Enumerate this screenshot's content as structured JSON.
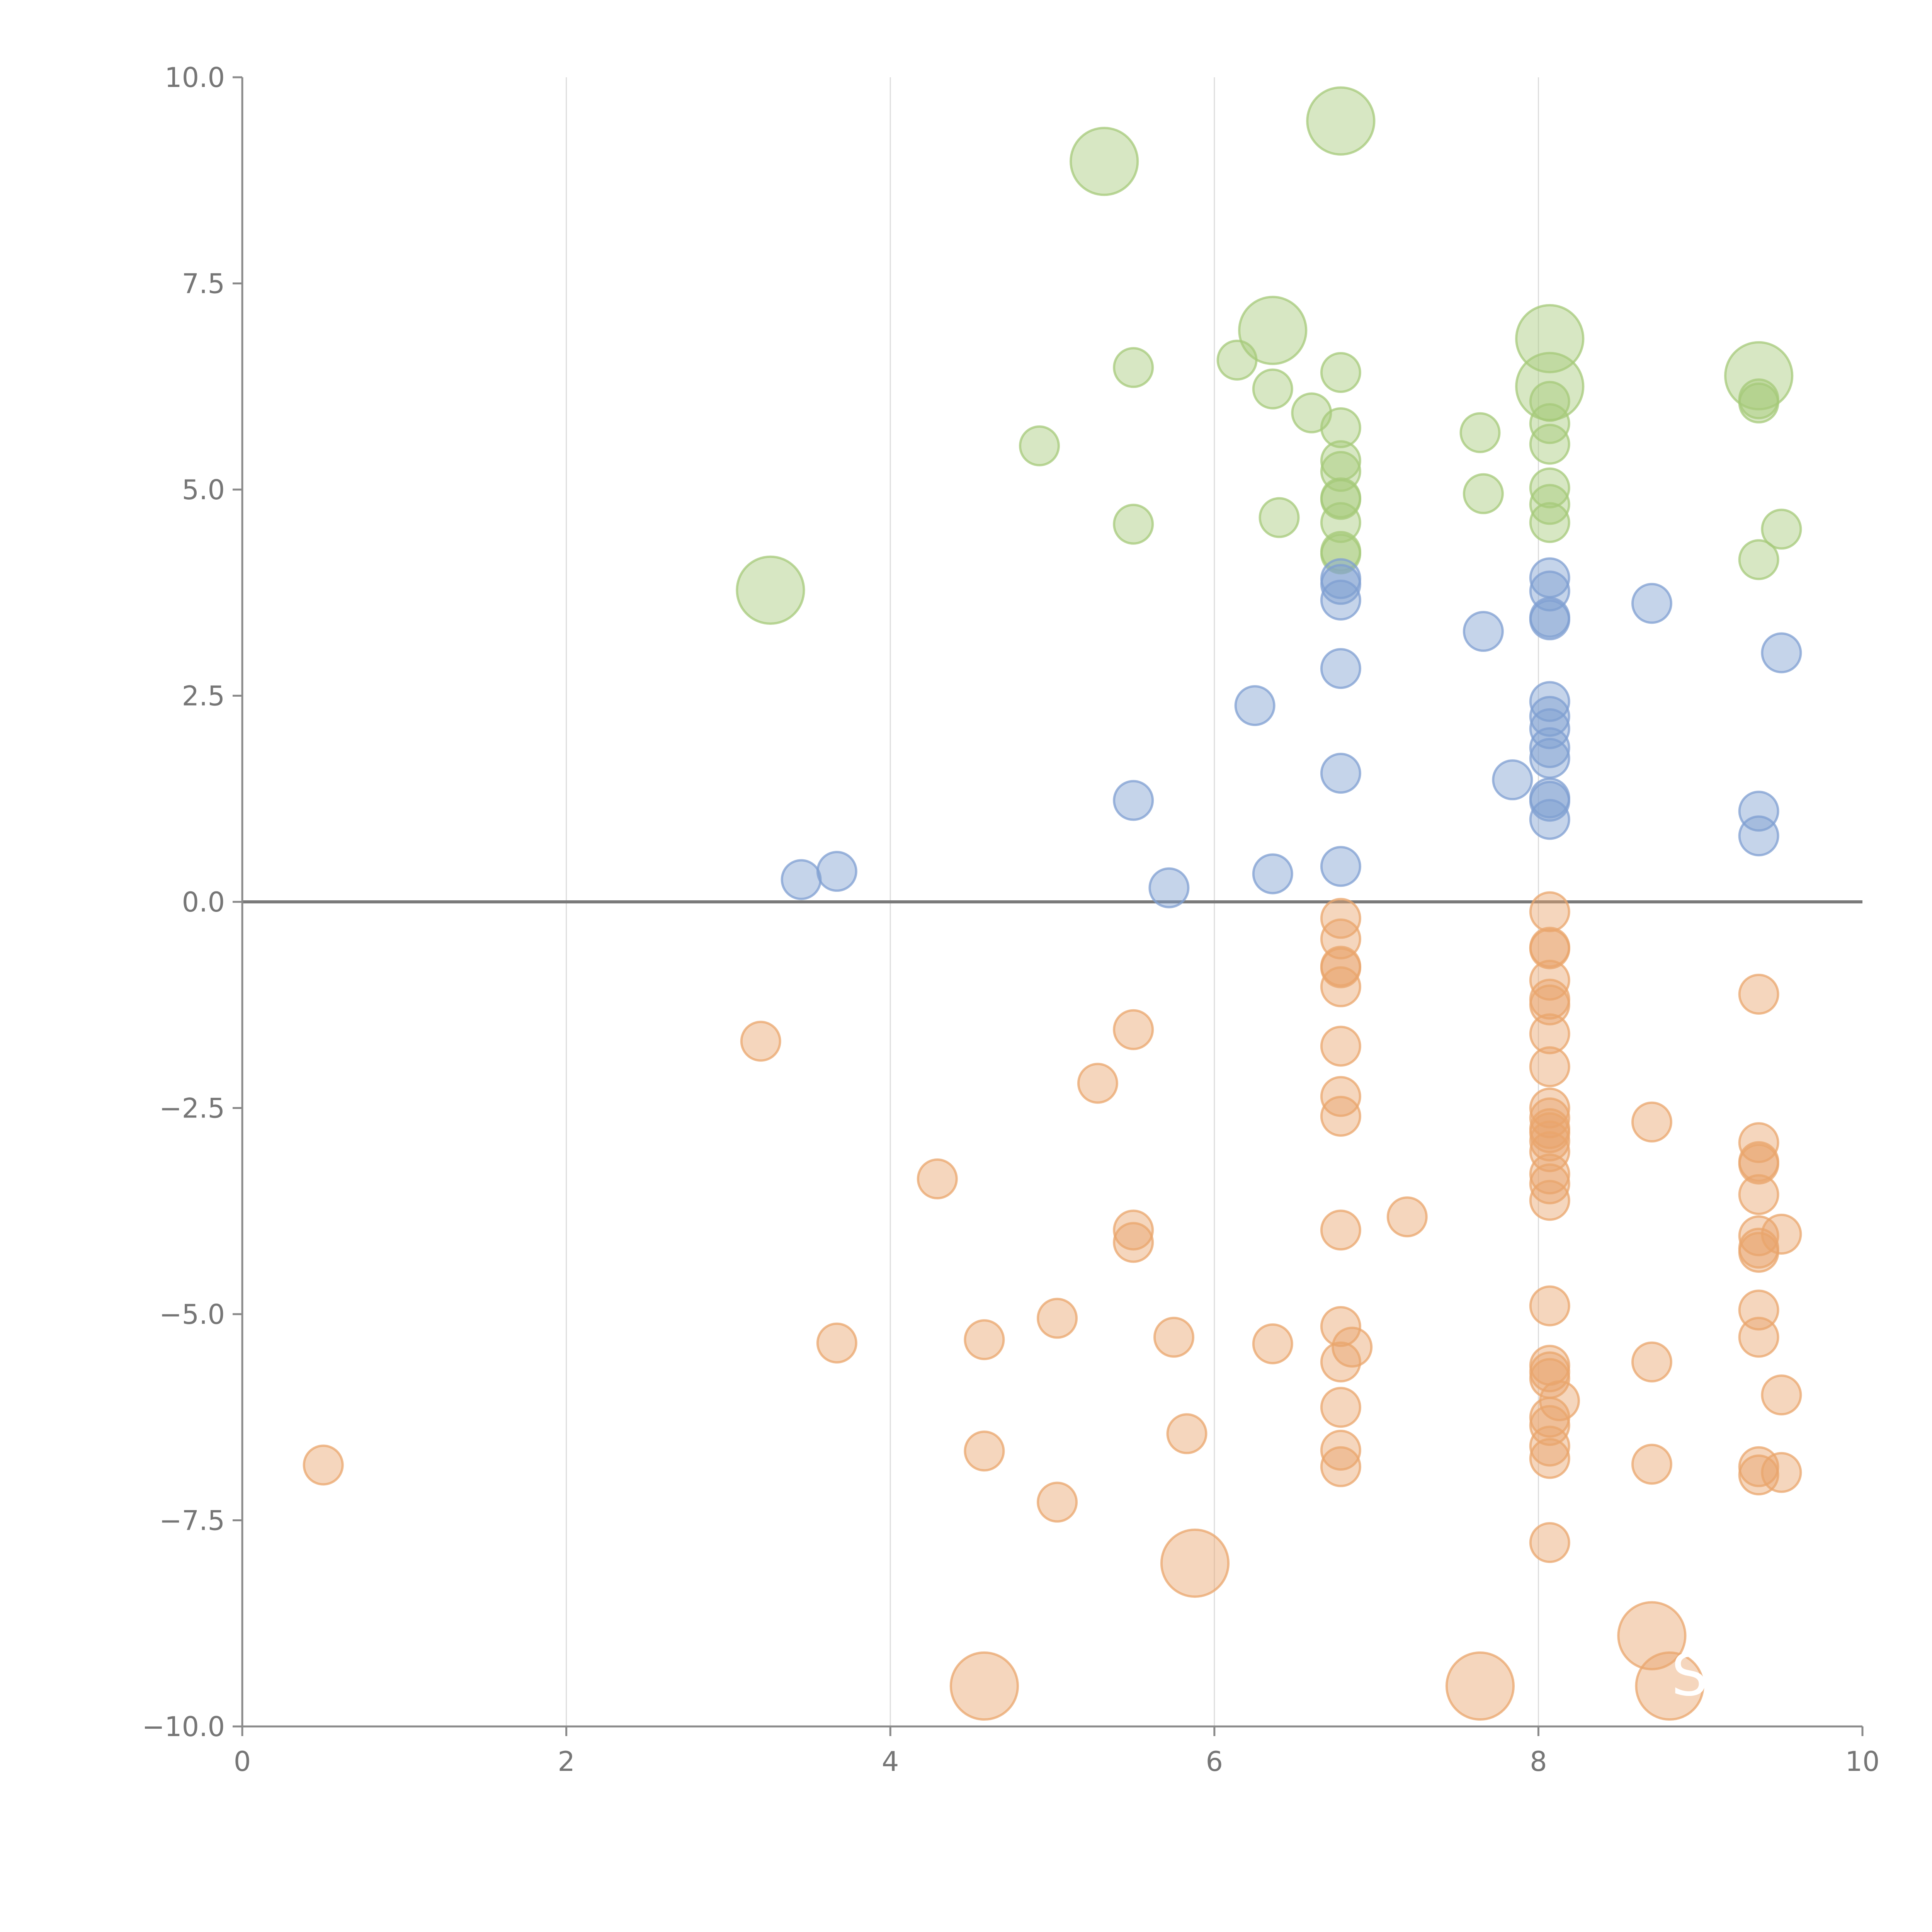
{
  "chart_data": {
    "type": "scatter",
    "title": "",
    "xlabel": "",
    "ylabel": "",
    "xlim": [
      0,
      10
    ],
    "ylim": [
      -10,
      10
    ],
    "x_ticks": [
      0,
      2,
      4,
      6,
      8,
      10
    ],
    "x_tick_labels": [
      "0",
      "2",
      "4",
      "6",
      "8",
      "10"
    ],
    "y_ticks": [
      10,
      7.5,
      5,
      2.5,
      0,
      -2.5,
      -5,
      -7.5,
      -10
    ],
    "y_tick_labels": [
      "10.0",
      "7.5",
      "5.0",
      "2.5",
      "0.0",
      "−2.5",
      "−5.0",
      "−7.5",
      "−10.0"
    ],
    "reference_line_y": 0,
    "grid": "vertical",
    "legend": "none",
    "series": [
      {
        "name": "green",
        "color": "#a6c97a",
        "points": [
          {
            "x": 6.78,
            "y": 9.47,
            "r": 3
          },
          {
            "x": 5.32,
            "y": 8.98,
            "r": 3
          },
          {
            "x": 6.36,
            "y": 6.93,
            "r": 3
          },
          {
            "x": 8.07,
            "y": 6.83,
            "r": 3
          },
          {
            "x": 8.07,
            "y": 6.25,
            "r": 3
          },
          {
            "x": 9.36,
            "y": 6.38,
            "r": 3
          },
          {
            "x": 3.26,
            "y": 3.78,
            "r": 3
          },
          {
            "x": 6.14,
            "y": 6.57,
            "r": 1
          },
          {
            "x": 6.36,
            "y": 6.22,
            "r": 1
          },
          {
            "x": 6.78,
            "y": 6.42,
            "r": 1
          },
          {
            "x": 5.5,
            "y": 6.48,
            "r": 1
          },
          {
            "x": 6.6,
            "y": 5.93,
            "r": 1
          },
          {
            "x": 4.92,
            "y": 5.53,
            "r": 1
          },
          {
            "x": 6.78,
            "y": 5.75,
            "r": 1
          },
          {
            "x": 6.78,
            "y": 5.35,
            "r": 1
          },
          {
            "x": 6.78,
            "y": 5.22,
            "r": 1
          },
          {
            "x": 6.78,
            "y": 4.9,
            "r": 1
          },
          {
            "x": 6.78,
            "y": 4.88,
            "r": 1
          },
          {
            "x": 6.78,
            "y": 4.6,
            "r": 1
          },
          {
            "x": 6.78,
            "y": 4.25,
            "r": 1
          },
          {
            "x": 6.78,
            "y": 4.22,
            "r": 1
          },
          {
            "x": 6.4,
            "y": 4.66,
            "r": 1
          },
          {
            "x": 5.5,
            "y": 4.58,
            "r": 1
          },
          {
            "x": 7.64,
            "y": 5.69,
            "r": 1
          },
          {
            "x": 7.66,
            "y": 4.95,
            "r": 1
          },
          {
            "x": 8.07,
            "y": 6.07,
            "r": 1
          },
          {
            "x": 8.07,
            "y": 5.8,
            "r": 1
          },
          {
            "x": 8.07,
            "y": 5.55,
            "r": 1
          },
          {
            "x": 8.07,
            "y": 5.02,
            "r": 1
          },
          {
            "x": 8.07,
            "y": 4.82,
            "r": 1
          },
          {
            "x": 8.07,
            "y": 4.6,
            "r": 1
          },
          {
            "x": 9.36,
            "y": 6.1,
            "r": 1
          },
          {
            "x": 9.36,
            "y": 6.05,
            "r": 1
          },
          {
            "x": 9.5,
            "y": 4.52,
            "r": 1
          },
          {
            "x": 9.36,
            "y": 4.15,
            "r": 1
          }
        ]
      },
      {
        "name": "blue",
        "color": "#7f9fd1",
        "points": [
          {
            "x": 6.78,
            "y": 3.92,
            "r": 1
          },
          {
            "x": 6.78,
            "y": 3.85,
            "r": 1
          },
          {
            "x": 6.78,
            "y": 3.66,
            "r": 1
          },
          {
            "x": 6.78,
            "y": 2.83,
            "r": 1
          },
          {
            "x": 6.78,
            "y": 1.56,
            "r": 1
          },
          {
            "x": 6.78,
            "y": 0.43,
            "r": 1
          },
          {
            "x": 6.25,
            "y": 2.38,
            "r": 1
          },
          {
            "x": 5.5,
            "y": 1.23,
            "r": 1
          },
          {
            "x": 5.72,
            "y": 0.17,
            "r": 1
          },
          {
            "x": 6.36,
            "y": 0.34,
            "r": 1
          },
          {
            "x": 3.45,
            "y": 0.27,
            "r": 1
          },
          {
            "x": 3.67,
            "y": 0.37,
            "r": 1
          },
          {
            "x": 7.66,
            "y": 3.28,
            "r": 1
          },
          {
            "x": 7.84,
            "y": 1.48,
            "r": 1
          },
          {
            "x": 8.07,
            "y": 3.93,
            "r": 1
          },
          {
            "x": 8.07,
            "y": 3.77,
            "r": 1
          },
          {
            "x": 8.07,
            "y": 3.45,
            "r": 1
          },
          {
            "x": 8.07,
            "y": 3.42,
            "r": 1
          },
          {
            "x": 8.07,
            "y": 2.43,
            "r": 1
          },
          {
            "x": 8.07,
            "y": 2.25,
            "r": 1
          },
          {
            "x": 8.07,
            "y": 2.1,
            "r": 1
          },
          {
            "x": 8.07,
            "y": 1.87,
            "r": 1
          },
          {
            "x": 8.07,
            "y": 1.74,
            "r": 1
          },
          {
            "x": 8.07,
            "y": 1.26,
            "r": 1
          },
          {
            "x": 8.07,
            "y": 1.22,
            "r": 1
          },
          {
            "x": 8.07,
            "y": 1.0,
            "r": 1
          },
          {
            "x": 8.7,
            "y": 3.62,
            "r": 1
          },
          {
            "x": 9.5,
            "y": 3.02,
            "r": 1
          },
          {
            "x": 9.36,
            "y": 1.1,
            "r": 1
          },
          {
            "x": 9.36,
            "y": 0.8,
            "r": 1
          }
        ]
      },
      {
        "name": "orange",
        "color": "#e9a56c",
        "points": [
          {
            "x": 5.88,
            "y": -8.02,
            "r": 3
          },
          {
            "x": 4.58,
            "y": -9.51,
            "r": 3
          },
          {
            "x": 7.64,
            "y": -9.51,
            "r": 3
          },
          {
            "x": 8.7,
            "y": -8.9,
            "r": 3
          },
          {
            "x": 8.81,
            "y": -9.51,
            "r": 3
          },
          {
            "x": 6.78,
            "y": -0.2,
            "r": 1
          },
          {
            "x": 6.78,
            "y": -0.45,
            "r": 1
          },
          {
            "x": 6.78,
            "y": -0.78,
            "r": 1
          },
          {
            "x": 6.78,
            "y": -0.8,
            "r": 1
          },
          {
            "x": 6.78,
            "y": -1.03,
            "r": 1
          },
          {
            "x": 6.78,
            "y": -1.75,
            "r": 1
          },
          {
            "x": 6.78,
            "y": -2.36,
            "r": 1
          },
          {
            "x": 6.78,
            "y": -2.6,
            "r": 1
          },
          {
            "x": 6.78,
            "y": -3.98,
            "r": 1
          },
          {
            "x": 6.78,
            "y": -5.15,
            "r": 1
          },
          {
            "x": 6.85,
            "y": -5.4,
            "r": 1
          },
          {
            "x": 6.78,
            "y": -5.58,
            "r": 1
          },
          {
            "x": 6.78,
            "y": -6.13,
            "r": 1
          },
          {
            "x": 6.78,
            "y": -6.65,
            "r": 1
          },
          {
            "x": 6.78,
            "y": -6.85,
            "r": 1
          },
          {
            "x": 3.2,
            "y": -1.69,
            "r": 1
          },
          {
            "x": 5.5,
            "y": -1.55,
            "r": 1
          },
          {
            "x": 5.28,
            "y": -2.2,
            "r": 1
          },
          {
            "x": 4.29,
            "y": -3.36,
            "r": 1
          },
          {
            "x": 5.5,
            "y": -3.98,
            "r": 1
          },
          {
            "x": 5.5,
            "y": -4.13,
            "r": 1
          },
          {
            "x": 7.19,
            "y": -3.82,
            "r": 1
          },
          {
            "x": 3.67,
            "y": -5.35,
            "r": 1
          },
          {
            "x": 4.58,
            "y": -5.31,
            "r": 1
          },
          {
            "x": 5.03,
            "y": -5.05,
            "r": 1
          },
          {
            "x": 5.75,
            "y": -5.28,
            "r": 1
          },
          {
            "x": 6.36,
            "y": -5.36,
            "r": 1
          },
          {
            "x": 5.83,
            "y": -6.45,
            "r": 1
          },
          {
            "x": 4.58,
            "y": -6.66,
            "r": 1
          },
          {
            "x": 5.03,
            "y": -7.28,
            "r": 1
          },
          {
            "x": 0.5,
            "y": -6.83,
            "r": 1
          },
          {
            "x": 8.07,
            "y": -0.12,
            "r": 1
          },
          {
            "x": 8.07,
            "y": -0.55,
            "r": 1
          },
          {
            "x": 8.07,
            "y": -0.57,
            "r": 1
          },
          {
            "x": 8.07,
            "y": -0.95,
            "r": 1
          },
          {
            "x": 8.07,
            "y": -1.18,
            "r": 1
          },
          {
            "x": 8.07,
            "y": -1.25,
            "r": 1
          },
          {
            "x": 8.07,
            "y": -1.6,
            "r": 1
          },
          {
            "x": 8.07,
            "y": -2.0,
            "r": 1
          },
          {
            "x": 8.07,
            "y": -2.5,
            "r": 1
          },
          {
            "x": 8.07,
            "y": -2.62,
            "r": 1
          },
          {
            "x": 8.07,
            "y": -2.75,
            "r": 1
          },
          {
            "x": 8.07,
            "y": -2.8,
            "r": 1
          },
          {
            "x": 8.07,
            "y": -2.9,
            "r": 1
          },
          {
            "x": 8.07,
            "y": -3.03,
            "r": 1
          },
          {
            "x": 8.07,
            "y": -3.3,
            "r": 1
          },
          {
            "x": 8.07,
            "y": -3.42,
            "r": 1
          },
          {
            "x": 8.07,
            "y": -3.62,
            "r": 1
          },
          {
            "x": 8.07,
            "y": -4.9,
            "r": 1
          },
          {
            "x": 8.07,
            "y": -5.62,
            "r": 1
          },
          {
            "x": 8.07,
            "y": -5.7,
            "r": 1
          },
          {
            "x": 8.07,
            "y": -5.78,
            "r": 1
          },
          {
            "x": 8.13,
            "y": -6.05,
            "r": 1
          },
          {
            "x": 8.07,
            "y": -6.25,
            "r": 1
          },
          {
            "x": 8.07,
            "y": -6.35,
            "r": 1
          },
          {
            "x": 8.07,
            "y": -6.6,
            "r": 1
          },
          {
            "x": 8.07,
            "y": -6.75,
            "r": 1
          },
          {
            "x": 8.07,
            "y": -7.77,
            "r": 1
          },
          {
            "x": 8.7,
            "y": -2.67,
            "r": 1
          },
          {
            "x": 8.7,
            "y": -5.58,
            "r": 1
          },
          {
            "x": 8.7,
            "y": -6.82,
            "r": 1
          },
          {
            "x": 9.36,
            "y": -1.12,
            "r": 1
          },
          {
            "x": 9.36,
            "y": -2.92,
            "r": 1
          },
          {
            "x": 9.36,
            "y": -3.15,
            "r": 1
          },
          {
            "x": 9.36,
            "y": -3.18,
            "r": 1
          },
          {
            "x": 9.36,
            "y": -3.55,
            "r": 1
          },
          {
            "x": 9.36,
            "y": -4.05,
            "r": 1
          },
          {
            "x": 9.36,
            "y": -4.2,
            "r": 1
          },
          {
            "x": 9.36,
            "y": -4.25,
            "r": 1
          },
          {
            "x": 9.5,
            "y": -4.03,
            "r": 1
          },
          {
            "x": 9.36,
            "y": -4.95,
            "r": 1
          },
          {
            "x": 9.36,
            "y": -5.28,
            "r": 1
          },
          {
            "x": 9.5,
            "y": -5.98,
            "r": 1
          },
          {
            "x": 9.36,
            "y": -6.85,
            "r": 1
          },
          {
            "x": 9.36,
            "y": -6.95,
            "r": 1
          },
          {
            "x": 9.5,
            "y": -6.92,
            "r": 1
          }
        ]
      }
    ],
    "annotations": [
      {
        "text": "Sc",
        "x": 8.82,
        "y": -9.62,
        "color": "#ffffff"
      }
    ]
  }
}
